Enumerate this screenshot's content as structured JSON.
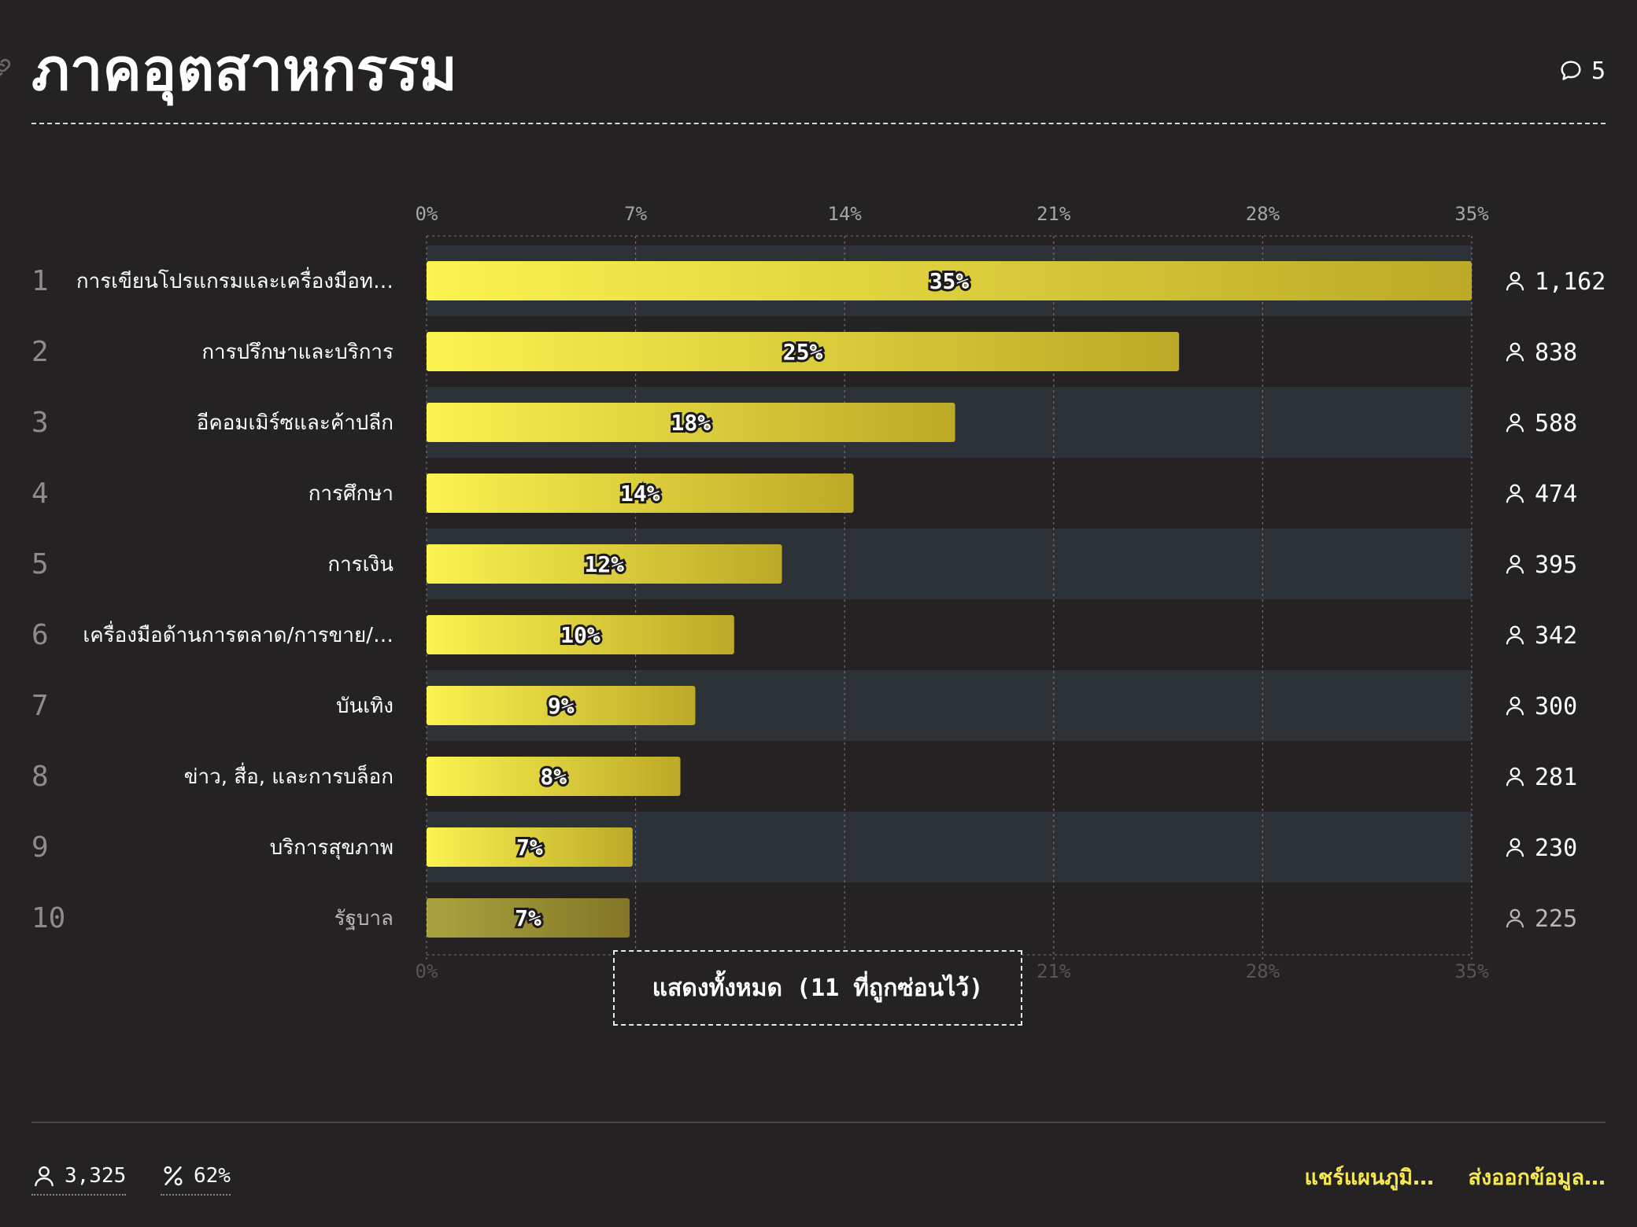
{
  "header": {
    "title": "ภาคอุตสาหกรรม",
    "comment_count": "5"
  },
  "chart_data": {
    "type": "bar",
    "orientation": "horizontal",
    "categories": [
      "การเขียนโปรแกรมและเครื่องมือท…",
      "การปรึกษาและบริการ",
      "อีคอมเมิร์ซและค้าปลีก",
      "การศึกษา",
      "การเงิน",
      "เครื่องมือด้านการตลาด/การขาย/…",
      "บันเทิง",
      "ข่าว, สื่อ, และการบล็อก",
      "บริการสุขภาพ",
      "รัฐบาล"
    ],
    "ranks": [
      "1",
      "2",
      "3",
      "4",
      "5",
      "6",
      "7",
      "8",
      "9",
      "10"
    ],
    "values": [
      35,
      25.2,
      17.7,
      14.3,
      11.9,
      10.3,
      9.0,
      8.5,
      6.9,
      6.8
    ],
    "value_labels": [
      "35%",
      "25%",
      "18%",
      "14%",
      "12%",
      "10%",
      "9%",
      "8%",
      "7%",
      "7%"
    ],
    "counts": [
      "1,162",
      "838",
      "588",
      "474",
      "395",
      "342",
      "300",
      "281",
      "230",
      "225"
    ],
    "xlim": [
      0,
      35
    ],
    "xticks": [
      "0%",
      "7%",
      "14%",
      "21%",
      "28%",
      "35%"
    ],
    "grid": true,
    "colors": {
      "bar_start": "#fbf350",
      "bar_end": "#bca927",
      "row_band": "#2c3236",
      "background": "#252224"
    }
  },
  "show_all_button": {
    "label": "แสดงทั้งหมด (11 ที่ถูกซ่อนไว้)"
  },
  "footer": {
    "respondents": "3,325",
    "percent": "62%",
    "share_label": "แชร์แผนภูมิ…",
    "export_label": "ส่งออกข้อมูล…",
    "accent_color": "#f5e94f"
  }
}
